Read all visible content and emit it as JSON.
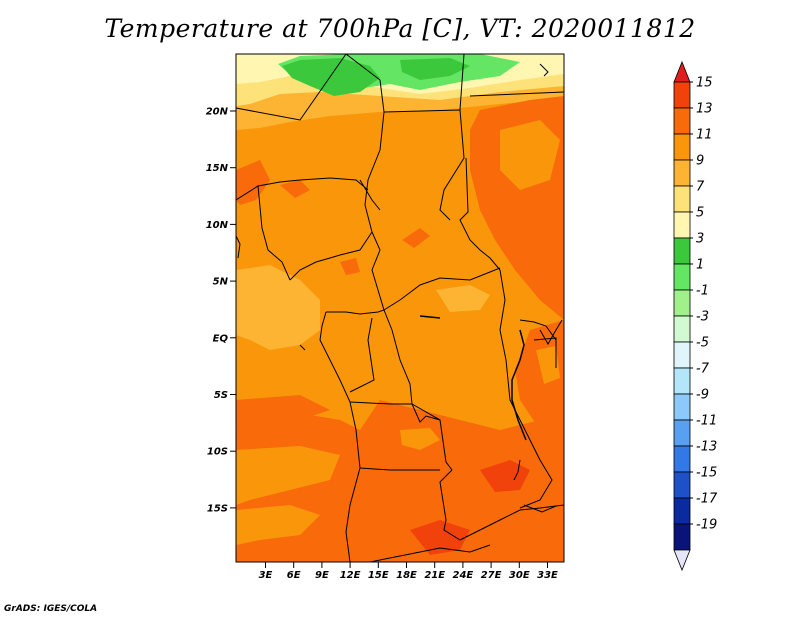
{
  "title": "Temperature at 700hPa [C], VT: 2020011812",
  "credit": "GrADS: IGES/COLA",
  "lat_labels": [
    "20N",
    "15N",
    "10N",
    "5N",
    "EQ",
    "5S",
    "10S",
    "15S"
  ],
  "lon_labels": [
    "3E",
    "6E",
    "9E",
    "12E",
    "15E",
    "18E",
    "21E",
    "24E",
    "27E",
    "30E",
    "33E"
  ],
  "colorbar": {
    "labels": [
      "15",
      "13",
      "11",
      "9",
      "7",
      "5",
      "3",
      "1",
      "-1",
      "-3",
      "-5",
      "-7",
      "-9",
      "-11",
      "-13",
      "-15",
      "-17",
      "-19"
    ],
    "colors": [
      "#e01e1e",
      "#f0420a",
      "#f86a0a",
      "#fa960a",
      "#fcb432",
      "#fde27a",
      "#fff6b2",
      "#3cc83c",
      "#64e664",
      "#a0f08c",
      "#d2fad2",
      "#e0f4fc",
      "#b4e6fa",
      "#8cc8fa",
      "#5aa0f0",
      "#3278e6",
      "#1e50c8",
      "#0a2aa0",
      "#0a1478",
      "#e6e6fa"
    ]
  }
}
